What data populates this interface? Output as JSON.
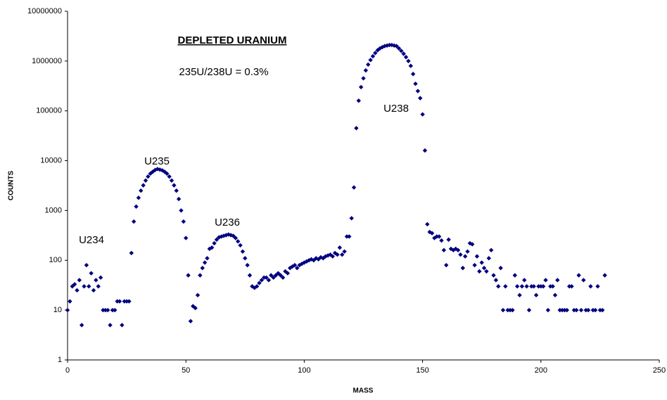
{
  "chart_data": {
    "type": "scatter",
    "title": "DEPLETED URANIUM",
    "annotations": [
      "235U/238U = 0.3%",
      "U234",
      "U235",
      "U236",
      "U238"
    ],
    "xlabel": "MASS",
    "ylabel": "COUNTS",
    "xlim": [
      0,
      250
    ],
    "xticks": [
      0,
      50,
      100,
      150,
      200,
      250
    ],
    "ylim": [
      1,
      10000000
    ],
    "yticks": [
      1,
      10,
      100,
      1000,
      10000,
      100000,
      1000000,
      10000000
    ],
    "log_y": true,
    "grid": false,
    "color": "#000080",
    "x": [
      0,
      1,
      2,
      3,
      4,
      5,
      6,
      7,
      8,
      9,
      10,
      11,
      12,
      13,
      14,
      15,
      16,
      17,
      18,
      19,
      20,
      21,
      22,
      23,
      24,
      25,
      26,
      27,
      28,
      29,
      30,
      31,
      32,
      33,
      34,
      35,
      36,
      37,
      38,
      39,
      40,
      41,
      42,
      43,
      44,
      45,
      46,
      47,
      48,
      49,
      50,
      51,
      52,
      53,
      54,
      55,
      56,
      57,
      58,
      59,
      60,
      61,
      62,
      63,
      64,
      65,
      66,
      67,
      68,
      69,
      70,
      71,
      72,
      73,
      74,
      75,
      76,
      77,
      78,
      79,
      80,
      81,
      82,
      83,
      84,
      85,
      86,
      87,
      88,
      89,
      90,
      91,
      92,
      93,
      94,
      95,
      96,
      97,
      98,
      99,
      100,
      101,
      102,
      103,
      104,
      105,
      106,
      107,
      108,
      109,
      110,
      111,
      112,
      113,
      114,
      115,
      116,
      117,
      118,
      119,
      120,
      121,
      122,
      123,
      124,
      125,
      126,
      127,
      128,
      129,
      130,
      131,
      132,
      133,
      134,
      135,
      136,
      137,
      138,
      139,
      140,
      141,
      142,
      143,
      144,
      145,
      146,
      147,
      148,
      149,
      150,
      151,
      152,
      153,
      154,
      155,
      156,
      157,
      158,
      159,
      160,
      161,
      162,
      163,
      164,
      165,
      166,
      167,
      168,
      169,
      170,
      171,
      172,
      173,
      174,
      175,
      176,
      177,
      178,
      179,
      180,
      181,
      182,
      183,
      184,
      185,
      186,
      187,
      188,
      189,
      190,
      191,
      192,
      193,
      194,
      195,
      196,
      197,
      198,
      199,
      200,
      201,
      202,
      203,
      204,
      205,
      206,
      207,
      208,
      209,
      210,
      211,
      212,
      213,
      214,
      215,
      216,
      217,
      218,
      219,
      220,
      221,
      222,
      223,
      224,
      225,
      226,
      227
    ],
    "values": [
      10,
      15,
      30,
      33,
      25,
      40,
      5,
      30,
      80,
      30,
      55,
      25,
      40,
      30,
      45,
      10,
      10,
      10,
      5,
      10,
      10,
      15,
      15,
      5,
      15,
      15,
      15,
      140,
      600,
      1200,
      1800,
      2500,
      3200,
      4000,
      4800,
      5500,
      6000,
      6500,
      6800,
      6600,
      6400,
      6000,
      5500,
      4800,
      4000,
      3200,
      2500,
      1700,
      1000,
      600,
      280,
      50,
      6,
      12,
      11,
      20,
      50,
      70,
      90,
      110,
      170,
      180,
      220,
      260,
      290,
      300,
      310,
      320,
      330,
      320,
      310,
      280,
      240,
      200,
      150,
      110,
      80,
      50,
      30,
      28,
      30,
      35,
      40,
      45,
      45,
      40,
      50,
      45,
      50,
      55,
      50,
      45,
      60,
      55,
      70,
      75,
      80,
      70,
      80,
      85,
      90,
      95,
      100,
      105,
      100,
      110,
      105,
      115,
      110,
      120,
      125,
      130,
      120,
      140,
      130,
      180,
      130,
      150,
      300,
      300,
      700,
      2900,
      45000,
      160000,
      300000,
      450000,
      650000,
      850000,
      1050000,
      1250000,
      1450000,
      1650000,
      1800000,
      1900000,
      2000000,
      2050000,
      2100000,
      2100000,
      2050000,
      2000000,
      1800000,
      1600000,
      1400000,
      1200000,
      1000000,
      800000,
      550000,
      350000,
      250000,
      180000,
      85000,
      16000,
      530,
      370,
      350,
      280,
      300,
      300,
      250,
      160,
      80,
      260,
      170,
      160,
      170,
      160,
      130,
      70,
      120,
      150,
      220,
      210,
      80,
      120,
      60,
      90,
      70,
      60,
      110,
      160,
      50,
      40,
      30,
      70,
      10,
      30,
      10,
      10,
      10,
      50,
      30,
      20,
      30,
      40,
      30,
      10,
      30,
      30,
      20,
      30,
      30,
      30,
      40,
      10,
      30,
      30,
      20,
      40,
      10,
      10,
      10,
      10,
      30,
      30,
      10,
      10,
      50,
      10,
      40,
      10,
      10,
      30,
      10,
      10,
      30,
      10,
      10,
      50
    ]
  }
}
